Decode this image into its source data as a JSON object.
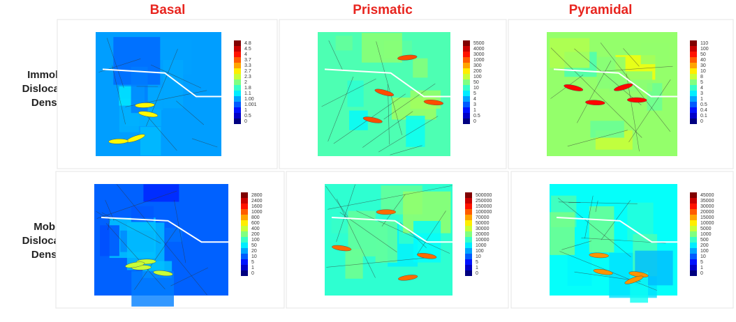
{
  "columns": [
    "Basal",
    "Prismatic",
    "Pyramidal"
  ],
  "rows": [
    {
      "label": [
        "Immobile",
        "Dislocation",
        "Density"
      ],
      "panels": [
        {
          "colorbar": [
            "4.8",
            "4.5",
            "4",
            "3.7",
            "3.3",
            "2.7",
            "2.3",
            "2",
            "1.8",
            "1.1",
            "1.00",
            "1.001",
            "1",
            "0.5",
            "0"
          ]
        },
        {
          "colorbar": [
            "5500",
            "4000",
            "3000",
            "1000",
            "300",
            "200",
            "100",
            "50",
            "10",
            "5",
            "4",
            "3",
            "1",
            "0.5",
            "0"
          ]
        },
        {
          "colorbar": [
            "110",
            "100",
            "50",
            "40",
            "30",
            "10",
            "8",
            "5",
            "4",
            "3",
            "1",
            "0.5",
            "0.4",
            "0.1",
            "0"
          ]
        }
      ]
    },
    {
      "label": [
        "Mobile",
        "Dislocation",
        "Density"
      ],
      "panels": [
        {
          "colorbar": [
            "2800",
            "2400",
            "1600",
            "1000",
            "800",
            "600",
            "400",
            "200",
            "100",
            "50",
            "20",
            "10",
            "5",
            "1",
            "0"
          ]
        },
        {
          "colorbar": [
            "500000",
            "250000",
            "150000",
            "100000",
            "70000",
            "50000",
            "30000",
            "20000",
            "10000",
            "1000",
            "100",
            "10",
            "5",
            "1",
            "0"
          ]
        },
        {
          "colorbar": [
            "45000",
            "35000",
            "30000",
            "20000",
            "15000",
            "10000",
            "5000",
            "1000",
            "500",
            "200",
            "100",
            "10",
            "5",
            "1",
            "0"
          ]
        }
      ]
    }
  ]
}
